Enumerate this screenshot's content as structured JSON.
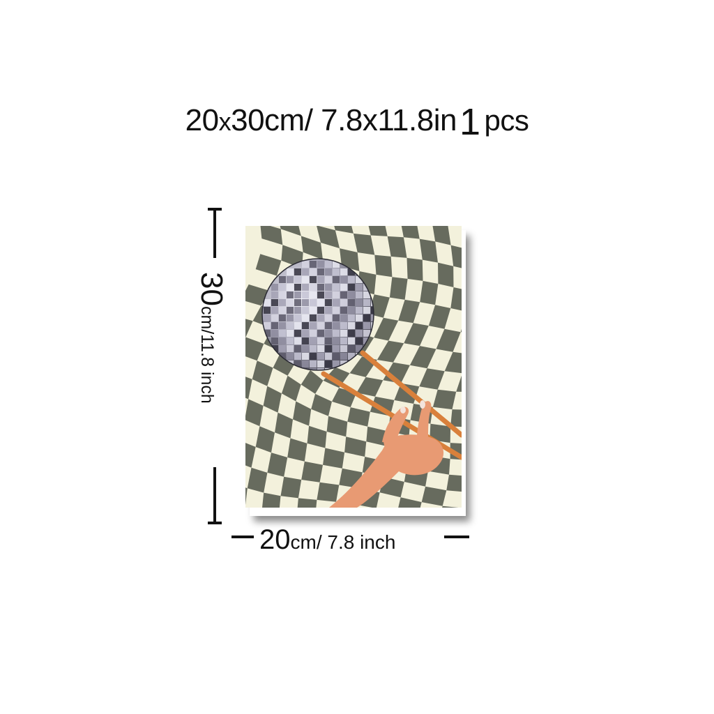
{
  "headline": {
    "size": "20",
    "x": "x",
    "size_rest": "30cm/ 7.8x11.8in",
    "quantity": "1",
    "unit": "pcs"
  },
  "height_label": {
    "value": "30",
    "unit": "cm/11.8 inch"
  },
  "width_label": {
    "value": "20",
    "unit": "cm/ 7.8 inch"
  },
  "poster": {
    "checker_dark": "#676b5e",
    "checker_light": "#f3f1dc",
    "chopstick_color": "#d9803b",
    "skin_color": "#e89a73",
    "icons": [
      "disco-ball-icon",
      "chopsticks-icon",
      "hand-icon"
    ]
  }
}
